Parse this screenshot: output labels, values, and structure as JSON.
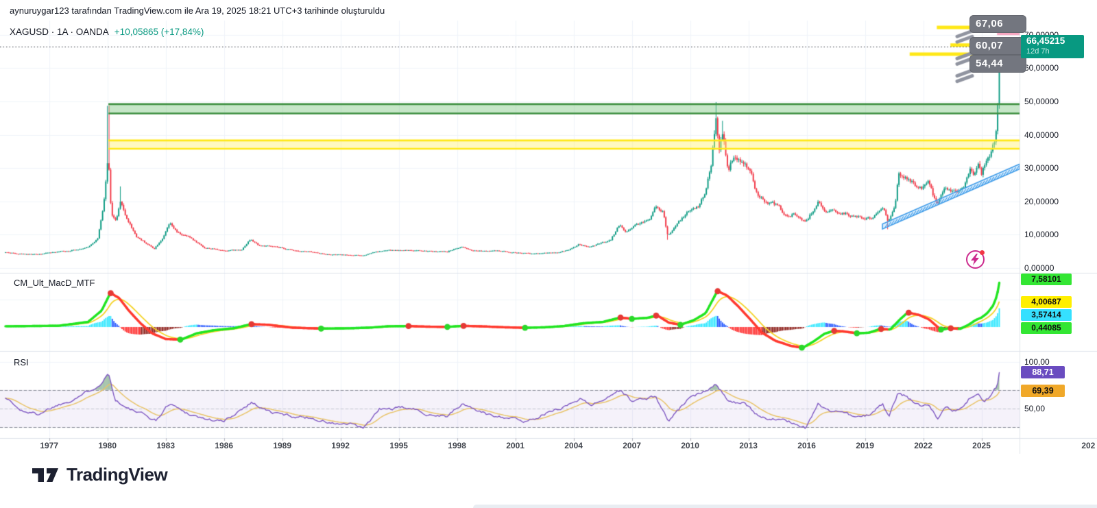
{
  "header": {
    "attribution": "aynuruygar123 tarafından TradingView.com ile Ara 19, 2025 18:21 UTC+3 tarihinde oluşturuldu"
  },
  "legend": {
    "instrument": "XAGUSD · 1A · OANDA",
    "change": "+10,05865 (+17,84%)"
  },
  "panes": {
    "macd": {
      "title": "CM_Ult_MacD_MTF",
      "values": [
        {
          "label": "7,58101",
          "value": 7.58101,
          "color": "#33e633",
          "text": "#111111"
        },
        {
          "label": "4,00687",
          "value": 4.00687,
          "color": "#ffef00",
          "text": "#111111"
        },
        {
          "label": "3,57414",
          "value": 3.57414,
          "color": "#35e0ff",
          "text": "#111111"
        },
        {
          "label": "0,44085",
          "value": 0.44085,
          "color": "#33e633",
          "text": "#111111"
        }
      ]
    },
    "rsi": {
      "title": "RSI",
      "ticks": [
        {
          "label": "100,00",
          "value": 100
        },
        {
          "label": "50,00",
          "value": 50
        }
      ],
      "values": [
        {
          "label": "88,71",
          "value": 88.71,
          "color": "#6a4cc0",
          "text": "#ffffff"
        },
        {
          "label": "69,39",
          "value": 69.39,
          "color": "#f0a829",
          "text": "#111111"
        }
      ]
    }
  },
  "price_axis": {
    "ticks": [
      {
        "label": "70,00000",
        "value": 70
      },
      {
        "label": "60,00000",
        "value": 60
      },
      {
        "label": "50,00000",
        "value": 50
      },
      {
        "label": "40,00000",
        "value": 40
      },
      {
        "label": "30,00000",
        "value": 30
      },
      {
        "label": "20,00000",
        "value": 20
      },
      {
        "label": "10,00000",
        "value": 10
      },
      {
        "label": "0,00000",
        "value": 0
      }
    ],
    "current": {
      "label": "66,45215",
      "countdown": "12d 7h",
      "value": 66.45215,
      "color": "#089981"
    },
    "callouts": [
      {
        "label": "67,06",
        "value": 73.2
      },
      {
        "label": "60,07",
        "value": 66.6
      },
      {
        "label": "54,44",
        "value": 61.4
      }
    ]
  },
  "x_axis": {
    "labels": [
      {
        "label": "1977",
        "year": 1977
      },
      {
        "label": "1980",
        "year": 1980
      },
      {
        "label": "1983",
        "year": 1983
      },
      {
        "label": "1986",
        "year": 1986
      },
      {
        "label": "1989",
        "year": 1989
      },
      {
        "label": "1992",
        "year": 1992
      },
      {
        "label": "1995",
        "year": 1995
      },
      {
        "label": "1998",
        "year": 1998
      },
      {
        "label": "2001",
        "year": 2001
      },
      {
        "label": "2004",
        "year": 2004
      },
      {
        "label": "2007",
        "year": 2007
      },
      {
        "label": "2010",
        "year": 2010
      },
      {
        "label": "2013",
        "year": 2013
      },
      {
        "label": "2016",
        "year": 2016
      },
      {
        "label": "2019",
        "year": 2019
      },
      {
        "label": "2022",
        "year": 2022
      },
      {
        "label": "2025",
        "year": 2025
      },
      {
        "label": "202",
        "year": 2030.5
      }
    ]
  },
  "chart_data": {
    "type": "candlestick",
    "symbol": "XAGUSD",
    "interval": "1 month",
    "exchange": "OANDA",
    "ylim": [
      0,
      74
    ],
    "grid": true,
    "price": {
      "t0": 1974.75,
      "t1": 2025.9167,
      "last_close": 66.45215,
      "anchors": [
        [
          1974.75,
          4.7
        ],
        [
          1975.5,
          4.3
        ],
        [
          1976.3,
          4.1
        ],
        [
          1977,
          4.6
        ],
        [
          1978,
          5.2
        ],
        [
          1979,
          6.2
        ],
        [
          1979.5,
          9
        ],
        [
          1979.8,
          18
        ],
        [
          1980.04,
          34
        ],
        [
          1980.2,
          16
        ],
        [
          1980.45,
          14
        ],
        [
          1980.7,
          20
        ],
        [
          1980.9,
          16
        ],
        [
          1981.5,
          9.5
        ],
        [
          1982.4,
          5.8
        ],
        [
          1982.9,
          9.5
        ],
        [
          1983.2,
          13.3
        ],
        [
          1983.6,
          10.5
        ],
        [
          1984.3,
          9
        ],
        [
          1985,
          6.1
        ],
        [
          1986,
          5.3
        ],
        [
          1986.9,
          5.5
        ],
        [
          1987.35,
          8.6
        ],
        [
          1987.8,
          6.8
        ],
        [
          1988.5,
          6.4
        ],
        [
          1989.5,
          5.4
        ],
        [
          1990.5,
          4.8
        ],
        [
          1991.5,
          4
        ],
        [
          1992.5,
          3.9
        ],
        [
          1993.15,
          3.7
        ],
        [
          1993.7,
          4.8
        ],
        [
          1994.5,
          5.3
        ],
        [
          1995.6,
          5.4
        ],
        [
          1996.5,
          5
        ],
        [
          1997.5,
          4.9
        ],
        [
          1997.9,
          5.9
        ],
        [
          1998.3,
          6.3
        ],
        [
          1998.8,
          5
        ],
        [
          1999.7,
          5.3
        ],
        [
          2000.5,
          4.9
        ],
        [
          2001.8,
          4.3
        ],
        [
          2002.5,
          4.6
        ],
        [
          2003.3,
          4.7
        ],
        [
          2003.9,
          5.9
        ],
        [
          2004.3,
          7.1
        ],
        [
          2004.7,
          6.2
        ],
        [
          2005.2,
          7
        ],
        [
          2005.9,
          8.3
        ],
        [
          2006.35,
          13
        ],
        [
          2006.7,
          10.8
        ],
        [
          2007.2,
          13.2
        ],
        [
          2007.9,
          14.5
        ],
        [
          2008.2,
          19
        ],
        [
          2008.6,
          17
        ],
        [
          2008.85,
          9.5
        ],
        [
          2009.3,
          13
        ],
        [
          2009.9,
          17
        ],
        [
          2010.4,
          18.5
        ],
        [
          2010.75,
          22
        ],
        [
          2011.1,
          32
        ],
        [
          2011.32,
          45
        ],
        [
          2011.5,
          35
        ],
        [
          2011.7,
          41
        ],
        [
          2011.95,
          28.5
        ],
        [
          2012.2,
          33
        ],
        [
          2012.75,
          31
        ],
        [
          2013.1,
          29
        ],
        [
          2013.4,
          22.5
        ],
        [
          2013.9,
          19.5
        ],
        [
          2014.5,
          19
        ],
        [
          2014.9,
          15.7
        ],
        [
          2015.4,
          16.2
        ],
        [
          2015.95,
          13.9
        ],
        [
          2016.6,
          19.8
        ],
        [
          2016.95,
          16
        ],
        [
          2017.4,
          17.3
        ],
        [
          2017.9,
          16.5
        ],
        [
          2018.5,
          15.4
        ],
        [
          2018.95,
          14.7
        ],
        [
          2019.4,
          15
        ],
        [
          2019.7,
          17.5
        ],
        [
          2019.95,
          17.9
        ],
        [
          2020.2,
          14
        ],
        [
          2020.55,
          18
        ],
        [
          2020.65,
          24
        ],
        [
          2020.75,
          28.3
        ],
        [
          2021.05,
          27
        ],
        [
          2021.4,
          25.8
        ],
        [
          2021.7,
          23.5
        ],
        [
          2022.05,
          24.2
        ],
        [
          2022.3,
          25.5
        ],
        [
          2022.7,
          18.8
        ],
        [
          2023.05,
          23.8
        ],
        [
          2023.35,
          24
        ],
        [
          2023.7,
          22.4
        ],
        [
          2023.95,
          24
        ],
        [
          2024.15,
          25
        ],
        [
          2024.4,
          29.8
        ],
        [
          2024.6,
          28.5
        ],
        [
          2024.85,
          32.5
        ],
        [
          2025.0,
          28.9
        ],
        [
          2025.2,
          32
        ],
        [
          2025.45,
          33
        ],
        [
          2025.6,
          36
        ],
        [
          2025.72,
          38.6
        ],
        [
          2025.82,
          47
        ],
        [
          2025.95,
          66.45215
        ]
      ],
      "wicks": [
        {
          "t": 1980.04,
          "high": 48.7
        },
        {
          "t": 1980.7,
          "high": 24.5
        },
        {
          "t": 2008.85,
          "low": 8.5
        },
        {
          "t": 2011.32,
          "high": 49.8
        },
        {
          "t": 2011.7,
          "high": 44.2
        },
        {
          "t": 2020.2,
          "low": 11.64
        },
        {
          "t": 2025.9167,
          "high": 67.1
        }
      ]
    },
    "levels": {
      "green_zone": {
        "top": 49.2,
        "bottom": 46.4,
        "from_year": 1980.05
      },
      "yellow_zone": {
        "top": 38.3,
        "bottom": 35.8,
        "from_year": 1980.05
      },
      "rays": [
        {
          "price": 72.2,
          "from": 2022.7,
          "to": 2025.9
        },
        {
          "price": 66.9,
          "from": 2023.4,
          "to": 2026.0
        },
        {
          "price": 64.2,
          "from": 2021.3,
          "to": 2025.6
        },
        {
          "price": 62.8,
          "from": 2024.6,
          "to": 2025.9
        }
      ],
      "pink_ray": {
        "price": 70.3,
        "from": 2025.8,
        "to": 2027.0
      },
      "channel": {
        "x1": 2019.9,
        "y1": 11.7,
        "x2": 2027.2,
        "y2": 30.3,
        "width": 1.5
      }
    },
    "macd": {
      "anchors": [
        [
          1975,
          0.12
        ],
        [
          1977.5,
          0.2
        ],
        [
          1979,
          0.8
        ],
        [
          1979.7,
          2.6
        ],
        [
          1980.15,
          5.4
        ],
        [
          1980.6,
          4.6
        ],
        [
          1981.1,
          2.6
        ],
        [
          1981.7,
          0.6
        ],
        [
          1982.3,
          -1
        ],
        [
          1983,
          -1.9
        ],
        [
          1983.8,
          -2
        ],
        [
          1984.6,
          -1
        ],
        [
          1985.5,
          -0.5
        ],
        [
          1986.5,
          -0.2
        ],
        [
          1987.4,
          0.45
        ],
        [
          1988.3,
          0.35
        ],
        [
          1989.5,
          -0.1
        ],
        [
          1991,
          -0.25
        ],
        [
          1992.5,
          -0.2
        ],
        [
          1993.5,
          -0.1
        ],
        [
          1994.5,
          0.12
        ],
        [
          1995.5,
          0.15
        ],
        [
          1996.5,
          0.05
        ],
        [
          1997.5,
          0.02
        ],
        [
          1998.3,
          0.18
        ],
        [
          1999.3,
          0.1
        ],
        [
          2000.5,
          -0.05
        ],
        [
          2001.5,
          -0.12
        ],
        [
          2002.5,
          -0.05
        ],
        [
          2003.5,
          0.15
        ],
        [
          2004.5,
          0.6
        ],
        [
          2005.5,
          0.8
        ],
        [
          2006.4,
          1.5
        ],
        [
          2007,
          1.3
        ],
        [
          2007.8,
          1.45
        ],
        [
          2008.3,
          1.85
        ],
        [
          2008.9,
          0.7
        ],
        [
          2009.5,
          0.35
        ],
        [
          2010.2,
          1.1
        ],
        [
          2010.8,
          2.2
        ],
        [
          2011.4,
          5.7
        ],
        [
          2011.9,
          5.0
        ],
        [
          2012.5,
          3.2
        ],
        [
          2013.1,
          1.2
        ],
        [
          2013.7,
          -0.9
        ],
        [
          2014.4,
          -2.2
        ],
        [
          2015.2,
          -3.0
        ],
        [
          2015.8,
          -3.3
        ],
        [
          2016.4,
          -2.2
        ],
        [
          2016.9,
          -1.1
        ],
        [
          2017.4,
          -0.6
        ],
        [
          2017.9,
          -0.7
        ],
        [
          2018.6,
          -1.0
        ],
        [
          2019.2,
          -0.9
        ],
        [
          2019.8,
          -0.3
        ],
        [
          2020.3,
          -0.4
        ],
        [
          2020.8,
          1.2
        ],
        [
          2021.2,
          2.3
        ],
        [
          2021.8,
          1.9
        ],
        [
          2022.3,
          1.2
        ],
        [
          2022.9,
          -0.4
        ],
        [
          2023.4,
          -0.2
        ],
        [
          2023.9,
          -0.3
        ],
        [
          2024.3,
          0.3
        ],
        [
          2024.7,
          1.1
        ],
        [
          2025,
          1.5
        ],
        [
          2025.3,
          2.2
        ],
        [
          2025.6,
          3.4
        ],
        [
          2025.8,
          5
        ],
        [
          2025.95,
          7.58101
        ]
      ]
    },
    "rsi": {
      "levels": [
        70,
        50,
        30
      ],
      "anchors": [
        [
          1974.8,
          62
        ],
        [
          1975.5,
          48
        ],
        [
          1976.4,
          44
        ],
        [
          1977.2,
          52
        ],
        [
          1978,
          58
        ],
        [
          1978.8,
          66
        ],
        [
          1979.6,
          76
        ],
        [
          1980.05,
          88
        ],
        [
          1980.4,
          60
        ],
        [
          1981,
          50
        ],
        [
          1981.8,
          44
        ],
        [
          1982.5,
          37
        ],
        [
          1983.2,
          56
        ],
        [
          1984,
          46
        ],
        [
          1985,
          39
        ],
        [
          1986,
          36
        ],
        [
          1987.4,
          57
        ],
        [
          1988.4,
          46
        ],
        [
          1989.5,
          42
        ],
        [
          1990.5,
          40
        ],
        [
          1991.5,
          34
        ],
        [
          1992.5,
          33
        ],
        [
          1993.2,
          29
        ],
        [
          1994,
          49
        ],
        [
          1995.5,
          51
        ],
        [
          1996.5,
          44
        ],
        [
          1997.5,
          42
        ],
        [
          1998.3,
          55
        ],
        [
          1999.5,
          44
        ],
        [
          2000.5,
          41
        ],
        [
          2001.5,
          36
        ],
        [
          2002.5,
          44
        ],
        [
          2003.5,
          52
        ],
        [
          2004.4,
          61
        ],
        [
          2005,
          54
        ],
        [
          2006.4,
          70
        ],
        [
          2007,
          58
        ],
        [
          2008.2,
          63
        ],
        [
          2008.9,
          36
        ],
        [
          2009.8,
          58
        ],
        [
          2010.8,
          70
        ],
        [
          2011.35,
          77
        ],
        [
          2012,
          58
        ],
        [
          2012.8,
          55
        ],
        [
          2013.5,
          42
        ],
        [
          2014.5,
          38
        ],
        [
          2015.3,
          35
        ],
        [
          2015.95,
          29
        ],
        [
          2016.6,
          56
        ],
        [
          2017,
          48
        ],
        [
          2017.8,
          47
        ],
        [
          2018.6,
          40
        ],
        [
          2019.2,
          43
        ],
        [
          2019.9,
          55
        ],
        [
          2020.25,
          41
        ],
        [
          2020.7,
          67
        ],
        [
          2021.1,
          63
        ],
        [
          2021.8,
          53
        ],
        [
          2022.3,
          55
        ],
        [
          2022.75,
          40
        ],
        [
          2023.1,
          52
        ],
        [
          2023.7,
          47
        ],
        [
          2024.1,
          53
        ],
        [
          2024.45,
          63
        ],
        [
          2024.9,
          64
        ],
        [
          2025.1,
          57
        ],
        [
          2025.4,
          62
        ],
        [
          2025.6,
          67
        ],
        [
          2025.8,
          74
        ],
        [
          2025.95,
          88.71
        ]
      ]
    }
  },
  "footer": {
    "brand": "TradingView"
  },
  "colors": {
    "up": "#089981",
    "down": "#f23645",
    "macd_up": "#22e522",
    "macd_down": "#ff3b30",
    "signal": "#f5d327",
    "hist_up1": "#2ee8ff",
    "hist_up2": "#2457ff",
    "hist_dn1": "#ff2b2b",
    "hist_dn2": "#8c1d18",
    "rsi": "#7e57c2",
    "rsi_ma": "#e9c469",
    "zone_green": "#3f9142",
    "zone_green_fill": "rgba(129,199,132,0.45)",
    "zone_yellow": "#ffe817",
    "zone_yellow_fill": "rgba(255,241,118,0.45)",
    "channel": "#3d9be9",
    "channel_fill": "rgba(144,202,249,0.32)",
    "pink": "#f8a5c0",
    "grid": "#f0f3fa",
    "separator": "#e0e3eb",
    "callout_bg": "#73767f",
    "boost": "#cc2b8e"
  }
}
